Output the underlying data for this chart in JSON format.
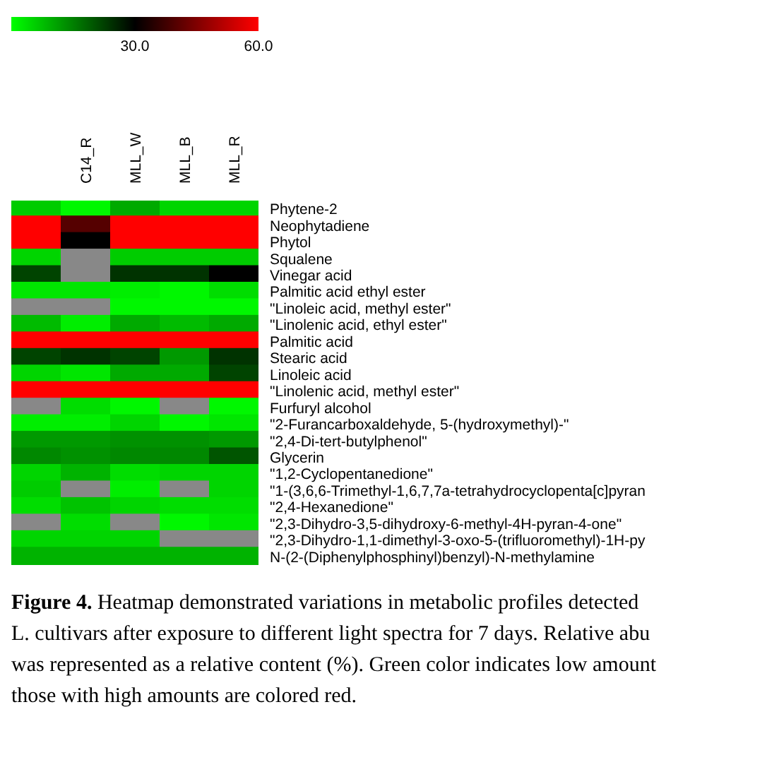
{
  "chart_data": {
    "type": "heatmap",
    "categories": [
      null,
      "C14_R",
      "MLL_W",
      "MLL_B",
      "MLL_R"
    ],
    "y_categories": [
      "Phytene-2",
      "Neophytadiene",
      "Phytol",
      "Squalene",
      "Vinegar acid",
      "Palmitic acid ethyl ester",
      "\"Linoleic acid, methyl ester\"",
      "\"Linolenic acid, ethyl ester\"",
      "Palmitic acid",
      "Stearic acid",
      "Linoleic acid",
      "\"Linolenic acid, methyl ester\"",
      "Furfuryl alcohol",
      "\"2-Furancarboxaldehyde, 5-(hydroxymethyl)-\"",
      "\"2,4-Di-tert-butylphenol\"",
      "Glycerin",
      "\"1,2-Cyclopentanedione\"",
      "\"1-(3,6,6-Trimethyl-1,6,7,7a-tetrahydrocyclopenta[c]pyran",
      "\"2,4-Hexanedione\"",
      "\"2,3-Dihydro-3,5-dihydroxy-6-methyl-4H-pyran-4-one\"",
      "\"2,3-Dihydro-1,1-dimethyl-3-oxo-5-(trifluoromethyl)-1H-py",
      "N-(2-(Diphenylphosphinyl)benzyl)-N-methylamine"
    ],
    "cells": [
      [
        6,
        1,
        10,
        5,
        5
      ],
      [
        60,
        40,
        60,
        60,
        60
      ],
      [
        60,
        30,
        60,
        60,
        60
      ],
      [
        5,
        null,
        6,
        6,
        6
      ],
      [
        22,
        null,
        24,
        24,
        30
      ],
      [
        3,
        3,
        2,
        1,
        4
      ],
      [
        null,
        null,
        1,
        1,
        1
      ],
      [
        8,
        2,
        10,
        8,
        10
      ],
      [
        60,
        60,
        60,
        60,
        60
      ],
      [
        22,
        24,
        22,
        12,
        24
      ],
      [
        5,
        3,
        10,
        10,
        22
      ],
      [
        60,
        60,
        60,
        60,
        60
      ],
      [
        null,
        4,
        1,
        null,
        1
      ],
      [
        2,
        2,
        5,
        1,
        3
      ],
      [
        12,
        12,
        13,
        13,
        12
      ],
      [
        14,
        13,
        14,
        14,
        20
      ],
      [
        5,
        9,
        4,
        5,
        5
      ],
      [
        6,
        null,
        2,
        null,
        5
      ],
      [
        4,
        7,
        5,
        4,
        4
      ],
      [
        null,
        4,
        null,
        1,
        3
      ],
      [
        5,
        5,
        5,
        null,
        null
      ],
      [
        9,
        9,
        9,
        9,
        9
      ]
    ],
    "clim": [
      0,
      60
    ],
    "cticks": [
      {
        "value": 30,
        "label": "30.0"
      },
      {
        "value": 60,
        "label": "60.0"
      }
    ],
    "annotations": [
      "Figure 4. Heatmap demonstrated variations in metabolic profiles detected",
      "L. cultivars after exposure to different light spectra for 7 days. Relative abu",
      "was represented as a relative content (%). Green color indicates low amount",
      "those with high amounts are colored red."
    ]
  }
}
